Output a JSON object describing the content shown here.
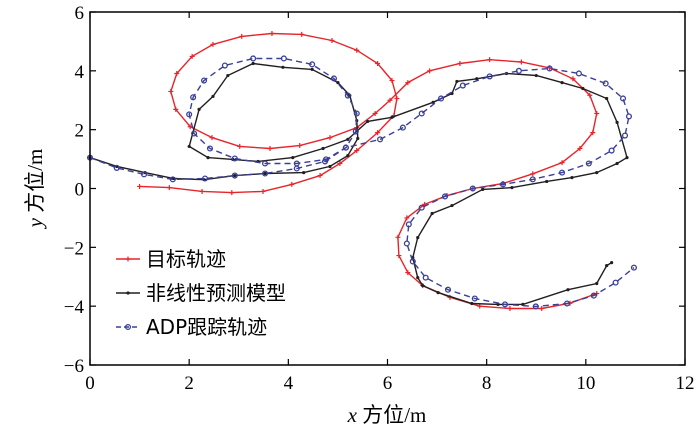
{
  "chart_data": {
    "type": "line",
    "title": "",
    "xlabel": {
      "var": "x",
      "text": " 方位/m"
    },
    "ylabel": {
      "var": "y",
      "text": " 方位/m"
    },
    "xlim": [
      0,
      12
    ],
    "ylim": [
      -6,
      6
    ],
    "xticks": [
      "0",
      "2",
      "4",
      "6",
      "8",
      "10",
      "12"
    ],
    "yticks": [
      "−6",
      "−4",
      "−2",
      "0",
      "2",
      "4",
      "6"
    ],
    "grid": false,
    "legend_position": "bottom-left",
    "series": [
      {
        "name": "目标轨迹",
        "color": "#e8242b",
        "style": "solid",
        "marker": "plus",
        "x": [
          1.0,
          1.6,
          2.26,
          2.86,
          3.49,
          4.07,
          4.64,
          5.04,
          5.38,
          5.8,
          6.13,
          6.19,
          6.09,
          5.8,
          5.38,
          4.88,
          4.27,
          3.67,
          3.06,
          2.48,
          2.06,
          1.75,
          1.63,
          1.73,
          2.02,
          2.46,
          3.02,
          3.63,
          4.23,
          4.84,
          5.38,
          5.75,
          6.05,
          6.41,
          6.85,
          7.46,
          8.06,
          8.7,
          9.27,
          9.74,
          10.08,
          10.22,
          10.14,
          9.88,
          9.52,
          8.93,
          8.33,
          7.72,
          7.2,
          6.75,
          6.39,
          6.21,
          6.23,
          6.41,
          6.71,
          7.26,
          7.86,
          8.47,
          9.11,
          9.68,
          10.22
        ],
        "y": [
          0.07,
          0.03,
          -0.1,
          -0.14,
          -0.1,
          0.14,
          0.44,
          0.85,
          1.29,
          1.9,
          2.48,
          3.06,
          3.67,
          4.25,
          4.7,
          5.03,
          5.24,
          5.27,
          5.17,
          4.9,
          4.49,
          3.91,
          3.3,
          2.69,
          2.1,
          1.73,
          1.43,
          1.36,
          1.46,
          1.73,
          2.07,
          2.55,
          3.0,
          3.6,
          4.0,
          4.25,
          4.38,
          4.3,
          4.1,
          3.73,
          3.17,
          2.55,
          1.9,
          1.36,
          0.88,
          0.5,
          0.17,
          0.0,
          -0.24,
          -0.54,
          -1.0,
          -1.66,
          -2.28,
          -2.86,
          -3.3,
          -3.7,
          -4.0,
          -4.08,
          -4.08,
          -3.9,
          -3.57
        ]
      },
      {
        "name": "非线性预测模型",
        "color": "#231f20",
        "style": "solid",
        "marker": "dot",
        "x": [
          0.0,
          0.54,
          1.11,
          1.69,
          2.3,
          2.92,
          3.53,
          4.31,
          4.84,
          5.2,
          5.4,
          5.38,
          5.24,
          5.0,
          4.48,
          3.89,
          3.29,
          2.78,
          2.48,
          2.2,
          2.0,
          2.38,
          2.88,
          3.39,
          4.09,
          4.7,
          5.2,
          5.6,
          6.09,
          6.92,
          7.3,
          7.4,
          7.8,
          8.4,
          9.0,
          9.52,
          9.94,
          10.42,
          10.63,
          10.83,
          10.63,
          10.22,
          9.72,
          9.21,
          8.51,
          7.92,
          7.3,
          6.9,
          6.61,
          6.51,
          6.61,
          6.71,
          7.02,
          7.7,
          8.23,
          8.73,
          9.64,
          10.22,
          10.42,
          10.52
        ],
        "y": [
          1.05,
          0.75,
          0.54,
          0.34,
          0.3,
          0.44,
          0.51,
          0.54,
          0.75,
          1.12,
          1.7,
          2.31,
          3.16,
          3.6,
          4.05,
          4.12,
          4.25,
          3.84,
          3.13,
          2.69,
          1.43,
          1.05,
          0.99,
          0.92,
          1.05,
          1.36,
          1.67,
          2.28,
          2.42,
          2.93,
          3.23,
          3.64,
          3.73,
          3.91,
          3.84,
          3.6,
          3.4,
          3.06,
          2.25,
          1.05,
          0.85,
          0.54,
          0.37,
          0.24,
          0.03,
          -0.03,
          -0.58,
          -0.85,
          -1.67,
          -2.35,
          -3.03,
          -3.3,
          -3.54,
          -3.91,
          -3.94,
          -3.94,
          -3.44,
          -3.23,
          -2.62,
          -2.52
        ]
      },
      {
        "name": "ADP跟踪轨迹",
        "color": "#3a3f98",
        "style": "dashed",
        "marker": "circle",
        "x": [
          0.0,
          0.54,
          1.09,
          1.67,
          2.32,
          2.92,
          3.53,
          4.17,
          4.74,
          5.16,
          5.36,
          5.38,
          5.2,
          4.92,
          4.48,
          3.91,
          3.29,
          2.72,
          2.3,
          2.08,
          2.0,
          2.1,
          2.42,
          2.92,
          3.53,
          4.17,
          4.76,
          5.16,
          5.85,
          6.31,
          6.69,
          7.08,
          7.52,
          8.06,
          8.65,
          9.27,
          9.86,
          10.4,
          10.75,
          10.87,
          10.79,
          10.52,
          10.06,
          9.52,
          8.93,
          8.33,
          7.72,
          7.16,
          6.69,
          6.43,
          6.39,
          6.51,
          6.77,
          7.22,
          7.76,
          8.37,
          8.99,
          9.62,
          10.16,
          10.6,
          10.97
        ],
        "y": [
          1.05,
          0.7,
          0.48,
          0.31,
          0.34,
          0.44,
          0.51,
          0.68,
          0.92,
          1.39,
          1.94,
          2.55,
          3.16,
          3.74,
          4.22,
          4.42,
          4.42,
          4.18,
          3.67,
          3.1,
          2.52,
          1.87,
          1.36,
          1.02,
          0.85,
          0.85,
          0.99,
          1.39,
          1.67,
          2.07,
          2.55,
          3.06,
          3.5,
          3.81,
          4.0,
          4.08,
          3.91,
          3.57,
          3.06,
          2.45,
          1.8,
          1.29,
          0.85,
          0.54,
          0.31,
          0.14,
          0.0,
          -0.27,
          -0.65,
          -1.22,
          -1.87,
          -2.48,
          -3.03,
          -3.44,
          -3.74,
          -3.94,
          -4.01,
          -3.91,
          -3.64,
          -3.2,
          -2.69
        ]
      }
    ]
  }
}
